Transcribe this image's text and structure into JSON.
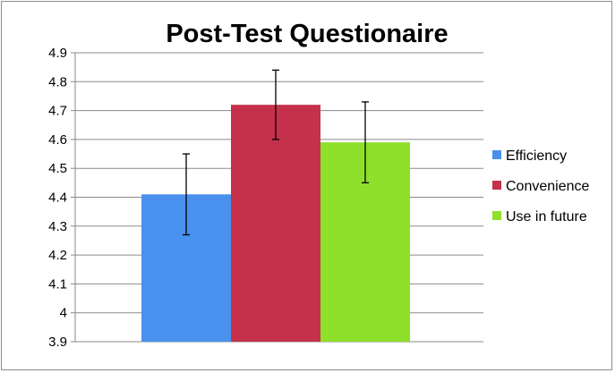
{
  "chart_data": {
    "type": "bar",
    "title": "Post-Test Questionaire",
    "xlabel": "",
    "ylabel": "",
    "ylim": [
      3.9,
      4.9
    ],
    "yticks": [
      "3.9",
      "4",
      "4.1",
      "4.2",
      "4.3",
      "4.4",
      "4.5",
      "4.6",
      "4.7",
      "4.8",
      "4.9"
    ],
    "grid": true,
    "legend_position": "right",
    "series": [
      {
        "name": "Efficiency",
        "value": 4.41,
        "error": 0.14,
        "color": "#4a90ee"
      },
      {
        "name": "Convenience",
        "value": 4.72,
        "error": 0.12,
        "color": "#c5314b"
      },
      {
        "name": "Use in future",
        "value": 4.59,
        "error": 0.14,
        "color": "#8ee02a"
      }
    ]
  }
}
